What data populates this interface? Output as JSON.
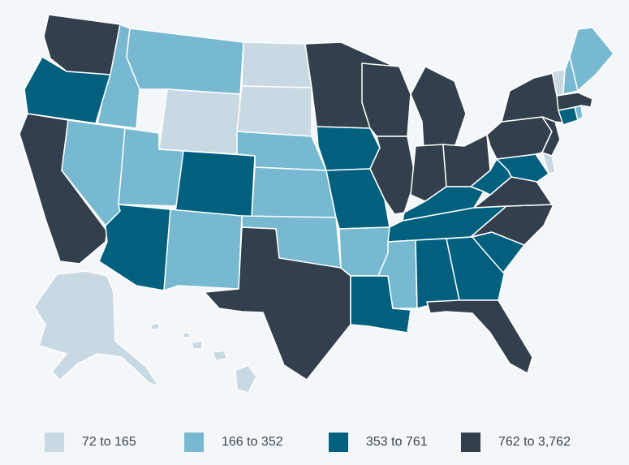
{
  "colors": {
    "background": "#f3f7f9",
    "tier1": "#c9d9e3",
    "tier2": "#76b9d1",
    "tier3": "#00607e",
    "tier4": "#333f4c"
  },
  "legend": [
    {
      "label": "72 to 165",
      "color": "#c9d9e3"
    },
    {
      "label": "166 to 352",
      "color": "#76b9d1"
    },
    {
      "label": "353 to 761",
      "color": "#00607e"
    },
    {
      "label": "762 to 3,762",
      "color": "#333f4c"
    }
  ],
  "states": {
    "WA": 4,
    "OR": 3,
    "CA": 4,
    "ID": 2,
    "NV": 2,
    "MT": 2,
    "WY": 1,
    "UT": 2,
    "AZ": 3,
    "CO": 3,
    "NM": 2,
    "ND": 1,
    "SD": 1,
    "NE": 2,
    "KS": 2,
    "OK": 2,
    "TX": 4,
    "MN": 4,
    "IA": 3,
    "MO": 3,
    "AR": 2,
    "LA": 3,
    "WI": 4,
    "IL": 4,
    "MI": 4,
    "IN": 4,
    "OH": 4,
    "KY": 3,
    "TN": 3,
    "MS": 2,
    "AL": 3,
    "GA": 3,
    "FL": 4,
    "SC": 3,
    "NC": 4,
    "VA": 4,
    "WV": 3,
    "PA": 4,
    "NY": 4,
    "VT": 1,
    "NH": 2,
    "ME": 2,
    "MA": 4,
    "RI": 2,
    "CT": 3,
    "NJ": 4,
    "DE": 1,
    "MD": 3,
    "AK": 1,
    "HI": 1
  }
}
